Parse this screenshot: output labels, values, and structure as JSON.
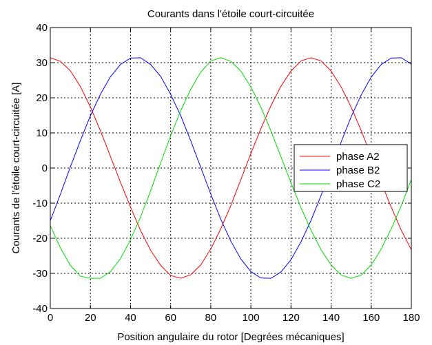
{
  "chart_data": {
    "type": "line",
    "title": "Courants dans l'étoile court-circuitée",
    "xlabel": "Position angulaire du rotor [Degrées mécaniques]",
    "ylabel": "Courants de l'étoile court-circuitée  [A]",
    "xlim": [
      0,
      180
    ],
    "ylim": [
      -40,
      40
    ],
    "xticks": [
      0,
      20,
      40,
      60,
      80,
      100,
      120,
      140,
      160,
      180
    ],
    "yticks": [
      -40,
      -30,
      -20,
      -10,
      0,
      10,
      20,
      30,
      40
    ],
    "xtick_labels": [
      "0",
      "20",
      "40",
      "60",
      "80",
      "100",
      "120",
      "140",
      "160",
      "180"
    ],
    "ytick_labels": [
      "-40",
      "-30",
      "-20",
      "-10",
      "0",
      "10",
      "20",
      "30",
      "40"
    ],
    "grid": true,
    "legend_position": "center-right",
    "x": [
      0,
      5,
      10,
      15,
      20,
      25,
      30,
      35,
      40,
      45,
      50,
      55,
      60,
      65,
      70,
      75,
      80,
      85,
      90,
      95,
      100,
      105,
      110,
      115,
      120,
      125,
      130,
      135,
      140,
      145,
      150,
      155,
      160,
      165,
      170,
      175,
      180
    ],
    "series": [
      {
        "name": "phase A2",
        "color": "#ff0000",
        "values": [
          31.4,
          30.4,
          27.7,
          23.2,
          17.4,
          10.6,
          3.3,
          -4.1,
          -11.1,
          -17.8,
          -23.4,
          -27.7,
          -30.6,
          -31.4,
          -30.4,
          -27.6,
          -23.1,
          -17.3,
          -10.7,
          -3.3,
          4.1,
          11.2,
          17.7,
          23.3,
          27.6,
          30.5,
          31.4,
          30.5,
          27.6,
          23.1,
          17.3,
          10.7,
          3.3,
          -4.1,
          -11.2,
          -17.7,
          -23.3
        ]
      },
      {
        "name": "phase B2",
        "color": "#0000ff",
        "values": [
          -15.0,
          -7.5,
          0.3,
          7.8,
          14.9,
          21.0,
          26.0,
          29.5,
          31.3,
          31.4,
          29.5,
          26.1,
          21.0,
          14.9,
          7.8,
          0.2,
          -7.4,
          -14.6,
          -20.8,
          -25.9,
          -29.5,
          -31.3,
          -31.4,
          -29.6,
          -26.1,
          -21.0,
          -14.9,
          -7.8,
          -0.2,
          7.4,
          14.6,
          20.8,
          25.9,
          29.5,
          31.3,
          31.4,
          29.6
        ]
      },
      {
        "name": "phase C2",
        "color": "#00dd00",
        "values": [
          -16.4,
          -22.7,
          -27.7,
          -30.8,
          -31.4,
          -31.4,
          -29.5,
          -25.8,
          -20.4,
          -13.9,
          -6.5,
          1.4,
          9.2,
          16.3,
          22.4,
          27.3,
          30.5,
          31.4,
          30.4,
          27.6,
          23.1,
          17.3,
          10.6,
          3.2,
          -4.2,
          -11.3,
          -17.7,
          -23.3,
          -27.6,
          -30.5,
          -31.4,
          -30.5,
          -27.6,
          -23.1,
          -17.3,
          -10.7,
          -3.3
        ]
      }
    ]
  }
}
